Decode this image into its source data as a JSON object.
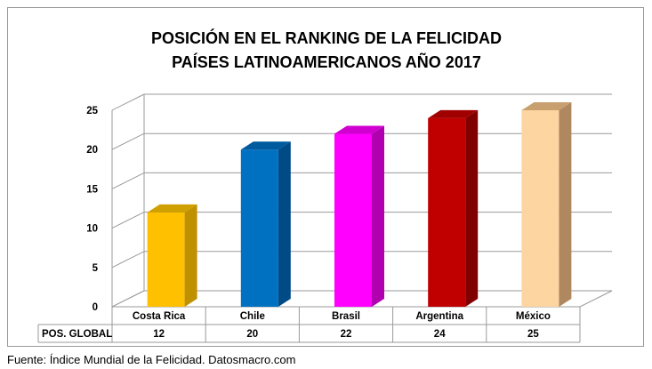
{
  "chart_data": {
    "type": "bar",
    "style": "3d-column",
    "title": [
      "POSICIÓN EN EL RANKING DE LA FELICIDAD",
      "PAÍSES LATINOAMERICANOS  AÑO 2017"
    ],
    "categories": [
      "Costa Rica",
      "Chile",
      "Brasil",
      "Argentina",
      "México"
    ],
    "series": [
      {
        "name": "POS. GLOBAL",
        "values": [
          12,
          20,
          22,
          24,
          25
        ]
      }
    ],
    "colors": [
      "#ffc000",
      "#0070c0",
      "#ff00ff",
      "#c00000",
      "#fcd5a0"
    ],
    "side_colors": [
      "#bf9000",
      "#004b86",
      "#b000b0",
      "#800000",
      "#b08860"
    ],
    "top_colors": [
      "#cfa000",
      "#005a9e",
      "#d000d0",
      "#a00000",
      "#c8a070"
    ],
    "yticks": [
      0,
      5,
      10,
      15,
      20,
      25
    ],
    "ylim": [
      0,
      25
    ],
    "xlabel": "",
    "ylabel": "",
    "grid": true,
    "data_table": true
  },
  "source": "Fuente: Índice Mundial de la Felicidad. Datosmacro.com"
}
